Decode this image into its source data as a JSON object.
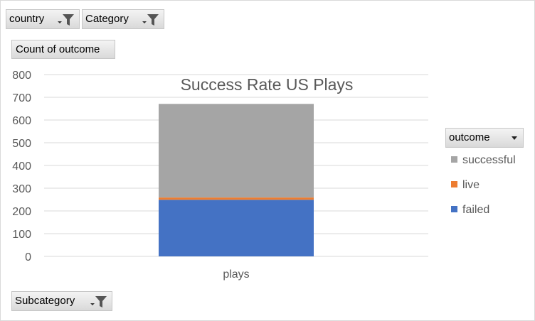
{
  "filters": {
    "country_label": "country",
    "category_label": "Category",
    "subcategory_label": "Subcategory"
  },
  "value_field": "Count of outcome",
  "legend": {
    "header": "outcome",
    "items": [
      {
        "label": "successful",
        "color": "#a5a5a5"
      },
      {
        "label": "live",
        "color": "#ed7d31"
      },
      {
        "label": "failed",
        "color": "#4472c4"
      }
    ]
  },
  "chart_data": {
    "type": "bar",
    "stacked": true,
    "title": "Success Rate US Plays",
    "categories": [
      "plays"
    ],
    "series": [
      {
        "name": "failed",
        "values": [
          249
        ],
        "color": "#4472c4"
      },
      {
        "name": "live",
        "values": [
          10
        ],
        "color": "#ed7d31"
      },
      {
        "name": "successful",
        "values": [
          412
        ],
        "color": "#a5a5a5"
      }
    ],
    "ylim": [
      0,
      800
    ],
    "yticks": [
      0,
      100,
      200,
      300,
      400,
      500,
      600,
      700,
      800
    ],
    "grid": true,
    "legend_position": "right"
  }
}
